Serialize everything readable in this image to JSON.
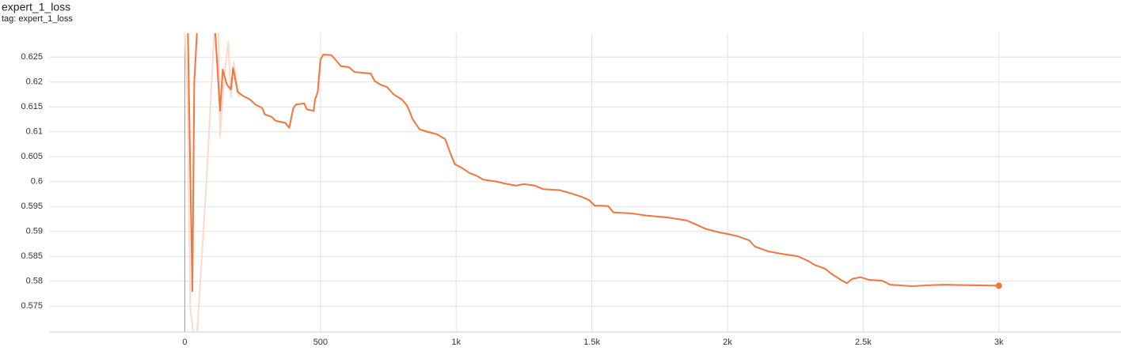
{
  "chart_data": {
    "type": "line",
    "title": "expert_1_loss",
    "subtitle": "tag: expert_1_loss",
    "xlim": [
      -500,
      3450
    ],
    "ylim": [
      0.5698,
      0.6298
    ],
    "xticks": [
      0,
      500,
      {
        "value": 1000,
        "label": "1k"
      },
      {
        "value": 1500,
        "label": "1.5k"
      },
      {
        "value": 2000,
        "label": "2k"
      },
      {
        "value": 2500,
        "label": "2.5k"
      },
      {
        "value": 3000,
        "label": "3k"
      }
    ],
    "yticks": [
      0.575,
      0.58,
      0.585,
      0.59,
      0.595,
      0.6,
      0.605,
      0.61,
      0.615,
      0.62,
      0.625
    ],
    "grid": true,
    "series": [
      {
        "color": "#fbd9cb",
        "x": [
          0,
          10,
          20,
          40,
          80,
          120,
          130,
          145,
          160,
          170,
          180,
          200
        ],
        "values": [
          0.63,
          0.618,
          0.575,
          0.565,
          0.6,
          0.642,
          0.609,
          0.621,
          0.628,
          0.617,
          0.624,
          0.617
        ]
      },
      {
        "color": "#f4743b",
        "x": [
          10,
          20,
          28,
          35,
          50,
          110,
          130,
          140,
          155,
          170,
          178,
          195,
          215,
          240,
          260,
          285,
          295,
          320,
          335,
          370,
          385,
          400,
          410,
          440,
          450,
          475,
          480,
          490,
          500,
          510,
          540,
          555,
          575,
          605,
          625,
          685,
          700,
          720,
          745,
          770,
          800,
          820,
          840,
          865,
          895,
          930,
          960,
          980,
          995,
          1020,
          1050,
          1075,
          1100,
          1150,
          1180,
          1220,
          1250,
          1290,
          1320,
          1380,
          1420,
          1460,
          1490,
          1510,
          1560,
          1580,
          1650,
          1700,
          1780,
          1850,
          1880,
          1920,
          1970,
          2000,
          2040,
          2080,
          2100,
          2150,
          2200,
          2260,
          2300,
          2320,
          2360,
          2380,
          2420,
          2440,
          2460,
          2490,
          2520,
          2570,
          2600,
          2680,
          2750,
          2800,
          2880,
          3000
        ],
        "values": [
          0.635,
          0.603,
          0.578,
          0.62,
          0.635,
          0.632,
          0.6142,
          0.6225,
          0.6195,
          0.6185,
          0.6228,
          0.618,
          0.6172,
          0.6165,
          0.6155,
          0.6148,
          0.6135,
          0.613,
          0.6122,
          0.6118,
          0.6108,
          0.6148,
          0.6155,
          0.6157,
          0.6145,
          0.6142,
          0.6165,
          0.618,
          0.6245,
          0.6255,
          0.6254,
          0.6245,
          0.6232,
          0.623,
          0.622,
          0.6217,
          0.6202,
          0.6195,
          0.619,
          0.6175,
          0.6165,
          0.6152,
          0.6125,
          0.6105,
          0.61,
          0.6095,
          0.6085,
          0.6055,
          0.6035,
          0.6028,
          0.6017,
          0.6012,
          0.6004,
          0.6,
          0.5996,
          0.5992,
          0.5995,
          0.5992,
          0.5985,
          0.5983,
          0.5977,
          0.597,
          0.5963,
          0.5952,
          0.5951,
          0.5938,
          0.5936,
          0.5932,
          0.5928,
          0.5922,
          0.5915,
          0.5905,
          0.5898,
          0.5895,
          0.589,
          0.5882,
          0.587,
          0.586,
          0.5855,
          0.585,
          0.584,
          0.5833,
          0.5825,
          0.5816,
          0.5802,
          0.5796,
          0.5805,
          0.5808,
          0.5803,
          0.5801,
          0.5793,
          0.579,
          0.5792,
          0.5793,
          0.5792,
          0.5791
        ]
      }
    ]
  }
}
